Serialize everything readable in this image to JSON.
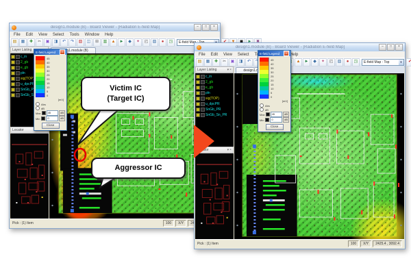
{
  "app": {
    "title": "design1.module (B)  -  Board Viewer  -  [Radiation E-field Map]",
    "window_buttons": [
      "–",
      "□",
      "×"
    ],
    "glyphs": {
      "close": "×",
      "caret": "▾",
      "arrow_down": "▼"
    },
    "menu_items": [
      "File",
      "Edit",
      "View",
      "Select",
      "Tools",
      "Window",
      "Help"
    ],
    "toolbar": {
      "icons_a": [
        {
          "g": "▤",
          "c": "#b8860b"
        },
        {
          "g": "▦",
          "c": "#3a6ea5"
        },
        {
          "g": "✚",
          "c": "#2e8b2e"
        },
        {
          "g": "✂",
          "c": "#555555"
        },
        {
          "g": "▣",
          "c": "#8a5ad0"
        },
        {
          "g": "◨",
          "c": "#3a6ea5"
        },
        {
          "g": "↶",
          "c": "#2255aa"
        },
        {
          "g": "↷",
          "c": "#2255aa"
        },
        {
          "g": "▧",
          "c": "#c03030"
        },
        {
          "g": "◫",
          "c": "#3a6ea5"
        },
        {
          "g": "⊞",
          "c": "#666666"
        },
        {
          "g": "▥",
          "c": "#2e8b2e"
        },
        {
          "g": "▲",
          "c": "#d07010"
        },
        {
          "g": "►",
          "c": "#208040"
        },
        {
          "g": "◆",
          "c": "#3a6ea5"
        },
        {
          "g": "✦",
          "c": "#b8507a"
        },
        {
          "g": "◰",
          "c": "#555555"
        },
        {
          "g": "▨",
          "c": "#3a6ea5"
        },
        {
          "g": "●",
          "c": "#c03030"
        },
        {
          "g": "◳",
          "c": "#2e8b2e"
        }
      ],
      "combo_value": "E-field Map : Top",
      "icons_b": [
        {
          "g": "✔",
          "c": "#cc2222"
        },
        {
          "g": "▼",
          "c": "#d07010"
        },
        {
          "g": "◼",
          "c": "#222222"
        },
        {
          "g": "►",
          "c": "#228855"
        },
        {
          "g": "✖",
          "c": "#884488"
        }
      ]
    },
    "tabs": [
      {
        "label": "design1.module (B)"
      }
    ],
    "layer_panel": {
      "title": "Layer Listing",
      "items": [
        {
          "c": "#17e3e3",
          "label": "c_in"
        },
        {
          "c": "#1ee11e",
          "label": "2_gb"
        },
        {
          "c": "#1ee11e",
          "label": "e_gb"
        },
        {
          "c": "#17e3e3",
          "label": "pln"
        },
        {
          "c": "#d8d81a",
          "label": "sig(TOP)"
        },
        {
          "c": "#17e3e3",
          "label": "u_dpcPR"
        },
        {
          "c": "#17e3e3",
          "label": "SnGb_PR"
        },
        {
          "c": "#17e3e3",
          "label": "SnGb_Sn_PR"
        }
      ]
    },
    "locator_panel": {
      "title": "Locator"
    },
    "legend": {
      "title": "E-field Legend",
      "unit": "[mV]",
      "steps": [
        {
          "color": "#ff1400",
          "label": "45"
        },
        {
          "color": "#ff6e00",
          "label": "40"
        },
        {
          "color": "#ffc800",
          "label": "35"
        },
        {
          "color": "#f0ff32",
          "label": "30"
        },
        {
          "color": "#96ff28",
          "label": "25"
        },
        {
          "color": "#3cf03c",
          "label": "20"
        },
        {
          "color": "#00d23c",
          "label": "15"
        },
        {
          "color": "#00c8a0",
          "label": "10"
        },
        {
          "color": "#00b4ff",
          "label": "5"
        },
        {
          "color": "#1432ff",
          "label": "0"
        }
      ],
      "options": [
        {
          "label": "Abs"
        },
        {
          "label": "dB"
        }
      ],
      "max": {
        "label": "Max",
        "value": "45",
        "btn": "dB"
      },
      "min": {
        "label": "Min",
        "value": "0",
        "btn": "dB"
      },
      "close_label": "Close"
    },
    "status": {
      "left": "Pick : (1) Item",
      "segments": [
        "100",
        "X/Y",
        "2425.4 , 3092.4"
      ]
    }
  },
  "annotations": {
    "victim_line1": "Victim IC",
    "victim_line2": "(Target IC)",
    "aggressor": "Aggressor IC",
    "circle_color": "#e60000"
  },
  "arrow": {
    "color": "#f3481d"
  },
  "colors": {
    "board_green": "#55cf3a",
    "hotspot_red": "#ff1e00",
    "hotspot_yellow": "#ffe41e",
    "legend_titlebar_blue": "#1c56b4"
  }
}
